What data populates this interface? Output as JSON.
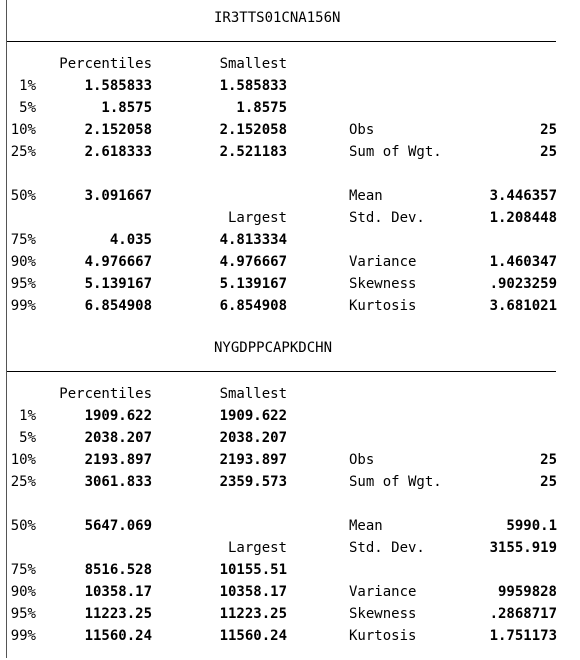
{
  "tables": [
    {
      "title": "IR3TTS01CNA156N",
      "headers": {
        "percentiles": "Percentiles",
        "smallest": "Smallest",
        "largest": "Largest"
      },
      "rows": [
        {
          "pct": "1%",
          "val": "1.585833",
          "ext": "1.585833"
        },
        {
          "pct": "5%",
          "val": "1.8575",
          "ext": "1.8575"
        },
        {
          "pct": "10%",
          "val": "2.152058",
          "ext": "2.152058",
          "stat": "Obs",
          "stat_val": "25"
        },
        {
          "pct": "25%",
          "val": "2.618333",
          "ext": "2.521183",
          "stat": "Sum of Wgt.",
          "stat_val": "25"
        },
        {
          "pct": "50%",
          "val": "3.091667",
          "ext": "",
          "stat": "Mean",
          "stat_val": "3.446357"
        },
        {
          "pct": "",
          "val": "",
          "ext": "",
          "stat": "Std. Dev.",
          "stat_val": "1.208448"
        },
        {
          "pct": "75%",
          "val": "4.035",
          "ext": "4.813334"
        },
        {
          "pct": "90%",
          "val": "4.976667",
          "ext": "4.976667",
          "stat": "Variance",
          "stat_val": "1.460347"
        },
        {
          "pct": "95%",
          "val": "5.139167",
          "ext": "5.139167",
          "stat": "Skewness",
          "stat_val": ".9023259"
        },
        {
          "pct": "99%",
          "val": "6.854908",
          "ext": "6.854908",
          "stat": "Kurtosis",
          "stat_val": "3.681021"
        }
      ]
    },
    {
      "title": "NYGDPPCAPKDCHN",
      "headers": {
        "percentiles": "Percentiles",
        "smallest": "Smallest",
        "largest": "Largest"
      },
      "rows": [
        {
          "pct": "1%",
          "val": "1909.622",
          "ext": "1909.622"
        },
        {
          "pct": "5%",
          "val": "2038.207",
          "ext": "2038.207"
        },
        {
          "pct": "10%",
          "val": "2193.897",
          "ext": "2193.897",
          "stat": "Obs",
          "stat_val": "25"
        },
        {
          "pct": "25%",
          "val": "3061.833",
          "ext": "2359.573",
          "stat": "Sum of Wgt.",
          "stat_val": "25"
        },
        {
          "pct": "50%",
          "val": "5647.069",
          "ext": "",
          "stat": "Mean",
          "stat_val": "5990.1"
        },
        {
          "pct": "",
          "val": "",
          "ext": "",
          "stat": "Std. Dev.",
          "stat_val": "3155.919"
        },
        {
          "pct": "75%",
          "val": "8516.528",
          "ext": "10155.51"
        },
        {
          "pct": "90%",
          "val": "10358.17",
          "ext": "10358.17",
          "stat": "Variance",
          "stat_val": "9959828"
        },
        {
          "pct": "95%",
          "val": "11223.25",
          "ext": "11223.25",
          "stat": "Skewness",
          "stat_val": ".2868717"
        },
        {
          "pct": "99%",
          "val": "11560.24",
          "ext": "11560.24",
          "stat": "Kurtosis",
          "stat_val": "1.751173"
        }
      ]
    }
  ]
}
